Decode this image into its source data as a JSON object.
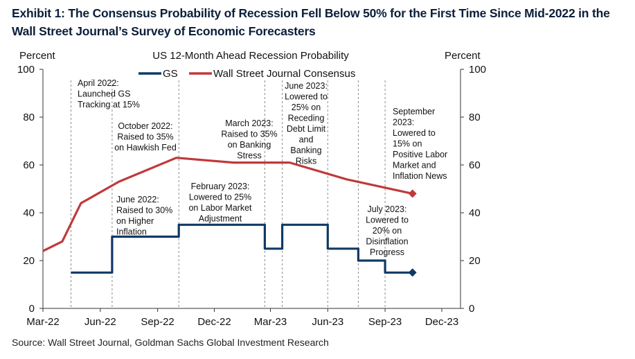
{
  "exhibit_title": "Exhibit 1: The Consensus Probability of Recession Fell Below 50% for the First Time Since Mid-2022 in the Wall Street Journal’s Survey of Economic Forecasters",
  "source": "Source: Wall Street Journal, Goldman Sachs Global Investment Research",
  "chart_data": {
    "type": "line",
    "title": "US 12-Month Ahead Recession Probability",
    "ylabel_left": "Percent",
    "ylabel_right": "Percent",
    "ylim": [
      0,
      100
    ],
    "yticks": [
      0,
      20,
      40,
      60,
      80,
      100
    ],
    "x_ticks": [
      {
        "label": "Mar-22",
        "date": "2022-03-01"
      },
      {
        "label": "Jun-22",
        "date": "2022-06-01"
      },
      {
        "label": "Sep-22",
        "date": "2022-09-01"
      },
      {
        "label": "Dec-22",
        "date": "2022-12-01"
      },
      {
        "label": "Mar-23",
        "date": "2023-03-01"
      },
      {
        "label": "Jun-23",
        "date": "2023-06-01"
      },
      {
        "label": "Sep-23",
        "date": "2023-09-01"
      },
      {
        "label": "Dec-23",
        "date": "2023-12-01"
      }
    ],
    "xlim": [
      "2022-03-01",
      "2023-12-31"
    ],
    "grid": false,
    "legend_position": "top-center",
    "series": [
      {
        "name": "GS",
        "color": "#0f3a66",
        "step": true,
        "end_marker": "diamond",
        "points": [
          {
            "date": "2022-04-15",
            "value": 15
          },
          {
            "date": "2022-06-20",
            "value": 30
          },
          {
            "date": "2022-10-05",
            "value": 35
          },
          {
            "date": "2023-02-20",
            "value": 25
          },
          {
            "date": "2023-03-20",
            "value": 35
          },
          {
            "date": "2023-06-01",
            "value": 25
          },
          {
            "date": "2023-07-20",
            "value": 20
          },
          {
            "date": "2023-09-01",
            "value": 15
          },
          {
            "date": "2023-10-15",
            "value": 15
          }
        ]
      },
      {
        "name": "Wall Street Journal Consensus",
        "color": "#c0393b",
        "step": false,
        "end_marker": "diamond",
        "points": [
          {
            "date": "2022-03-01",
            "value": 24
          },
          {
            "date": "2022-04-01",
            "value": 28
          },
          {
            "date": "2022-05-01",
            "value": 44
          },
          {
            "date": "2022-07-01",
            "value": 53
          },
          {
            "date": "2022-10-01",
            "value": 63
          },
          {
            "date": "2023-01-01",
            "value": 61
          },
          {
            "date": "2023-04-01",
            "value": 61
          },
          {
            "date": "2023-07-01",
            "value": 54
          },
          {
            "date": "2023-10-15",
            "value": 48
          }
        ]
      }
    ],
    "event_lines": [
      "2022-04-15",
      "2022-06-20",
      "2022-10-05",
      "2023-02-20",
      "2023-03-20",
      "2023-06-01",
      "2023-07-20",
      "2023-09-01"
    ],
    "annotations": [
      {
        "id": "apr-2022",
        "lines": [
          "April 2022:",
          "Launched GS",
          "Tracking at 15%"
        ]
      },
      {
        "id": "jun-2022",
        "lines": [
          "June 2022:",
          "Raised to 30%",
          "on Higher",
          "Inflation"
        ]
      },
      {
        "id": "oct-2022",
        "lines": [
          "October 2022:",
          "Raised to 35%",
          "on Hawkish Fed"
        ]
      },
      {
        "id": "feb-2023",
        "lines": [
          "February 2023:",
          "Lowered to 25%",
          "on Labor Market",
          "Adjustment"
        ]
      },
      {
        "id": "mar-2023",
        "lines": [
          "March 2023:",
          "Raised to 35%",
          "on Banking",
          "Stress"
        ]
      },
      {
        "id": "jun-2023",
        "lines": [
          "June 2023:",
          "Lowered to",
          "25% on",
          "Receding",
          "Debt Limit",
          "and",
          "Banking",
          "Risks"
        ]
      },
      {
        "id": "jul-2023",
        "lines": [
          "July 2023:",
          "Lowered to",
          "20% on",
          "Disinflation",
          "Progress"
        ]
      },
      {
        "id": "sep-2023",
        "lines": [
          "September",
          "2023:",
          "Lowered to",
          "15% on",
          "Positive Labor",
          "Market and",
          "Inflation News"
        ]
      }
    ]
  }
}
